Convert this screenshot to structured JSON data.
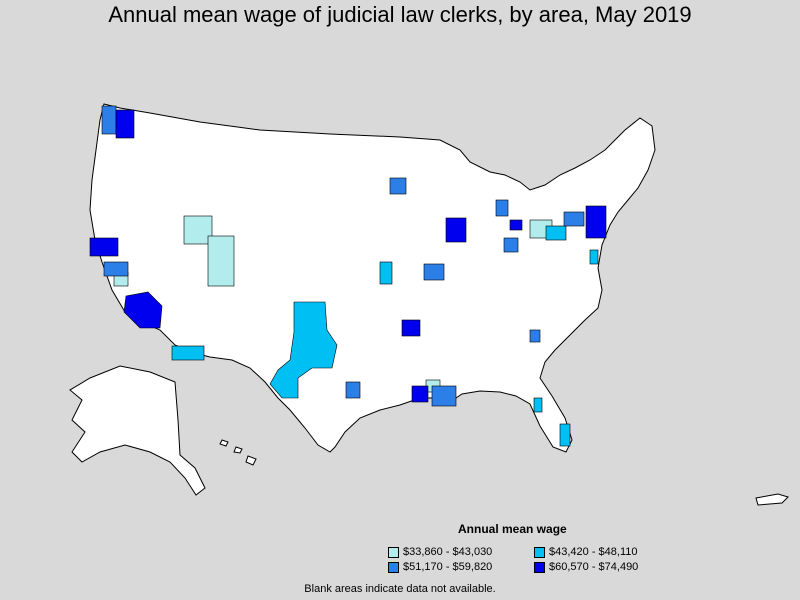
{
  "title": "Annual mean wage of judicial law clerks, by area, May 2019",
  "legend": {
    "title": "Annual mean wage",
    "items": [
      {
        "label": "$33,860 - $43,030",
        "color": "#b3ecec"
      },
      {
        "label": "$43,420 - $48,110",
        "color": "#00bff2"
      },
      {
        "label": "$51,170 - $59,820",
        "color": "#2b7fe6"
      },
      {
        "label": "$60,570 - $74,490",
        "color": "#0000ee"
      }
    ]
  },
  "footnote": "Blank areas indicate data not available.",
  "colors": {
    "background": "#d9d9d9",
    "land": "#ffffff",
    "border": "#000000"
  }
}
